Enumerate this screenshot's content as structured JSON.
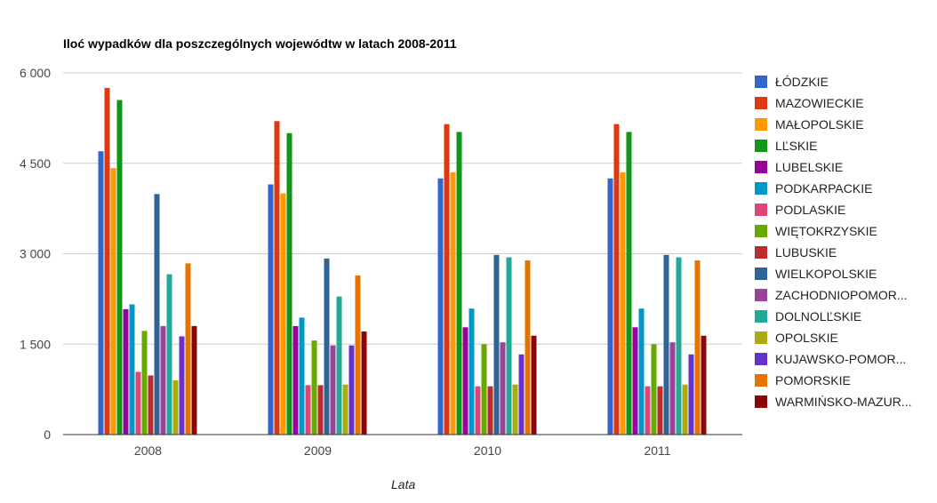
{
  "chart_data": {
    "type": "bar",
    "title": "Iloć wypadków dla poszczególnych wojewódtw w latach 2008-2011",
    "xlabel": "Lata",
    "ylabel": "",
    "ylim": [
      0,
      6000
    ],
    "yticks": [
      {
        "value": 0,
        "label": "0"
      },
      {
        "value": 1500,
        "label": "1 500"
      },
      {
        "value": 3000,
        "label": "3 000"
      },
      {
        "value": 4500,
        "label": "4 500"
      },
      {
        "value": 6000,
        "label": "6 000"
      }
    ],
    "grid": true,
    "legend_position": "right",
    "categories": [
      "2008",
      "2009",
      "2010",
      "2011"
    ],
    "series": [
      {
        "name": "ŁÓDZKIE",
        "color": "#3366cc",
        "values": [
          4700,
          4150,
          4250,
          4250
        ]
      },
      {
        "name": "MAZOWIECKIE",
        "color": "#dc3912",
        "values": [
          5750,
          5200,
          5150,
          5150
        ]
      },
      {
        "name": "MAŁOPOLSKIE",
        "color": "#ff9900",
        "values": [
          4420,
          4000,
          4350,
          4350
        ]
      },
      {
        "name": "LĽSKIE",
        "color": "#109618",
        "values": [
          5550,
          5000,
          5020,
          5020
        ]
      },
      {
        "name": "LUBELSKIE",
        "color": "#990099",
        "values": [
          2080,
          1800,
          1780,
          1780
        ]
      },
      {
        "name": "PODKARPACKIE",
        "color": "#0099c6",
        "values": [
          2160,
          1940,
          2090,
          2090
        ]
      },
      {
        "name": "PODLASKIE",
        "color": "#dd4477",
        "values": [
          1040,
          820,
          800,
          800
        ]
      },
      {
        "name": "WIĘTOKRZYSKIE",
        "color": "#66aa00",
        "values": [
          1720,
          1560,
          1500,
          1500
        ]
      },
      {
        "name": "LUBUSKIE",
        "color": "#b82e2e",
        "values": [
          980,
          820,
          800,
          800
        ]
      },
      {
        "name": "WIELKOPOLSKIE",
        "color": "#316395",
        "values": [
          3990,
          2920,
          2980,
          2980
        ]
      },
      {
        "name": "ZACHODNIOPOMOR...",
        "color": "#994499",
        "values": [
          1800,
          1480,
          1530,
          1530
        ]
      },
      {
        "name": "DOLNOLĽSKIE",
        "color": "#22aa99",
        "values": [
          2660,
          2290,
          2940,
          2940
        ]
      },
      {
        "name": "OPOLSKIE",
        "color": "#aaaa11",
        "values": [
          900,
          830,
          830,
          830
        ]
      },
      {
        "name": "KUJAWSKO-POMOR...",
        "color": "#6633cc",
        "values": [
          1630,
          1480,
          1330,
          1330
        ]
      },
      {
        "name": "POMORSKIE",
        "color": "#e67300",
        "values": [
          2840,
          2640,
          2890,
          2890
        ]
      },
      {
        "name": "WARMIŃSKO-MAZUR...",
        "color": "#8b0707",
        "values": [
          1800,
          1710,
          1640,
          1640
        ]
      }
    ]
  }
}
